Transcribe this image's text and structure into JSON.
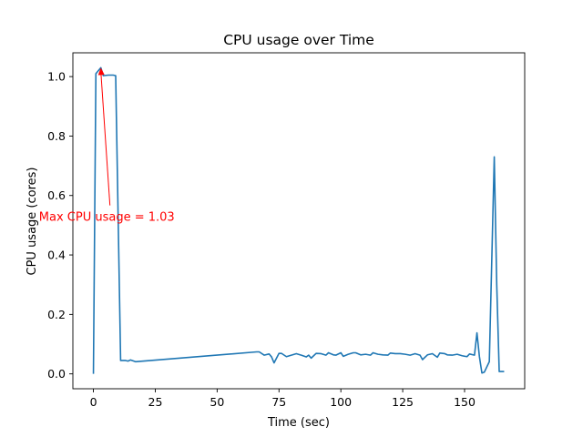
{
  "chart_data": {
    "type": "line",
    "title": "CPU usage over Time",
    "xlabel": "Time (sec)",
    "ylabel": "CPU usage (cores)",
    "xlim": [
      -8.3,
      174.3
    ],
    "ylim": [
      -0.05,
      1.08
    ],
    "xticks": [
      0,
      25,
      50,
      75,
      100,
      125,
      150
    ],
    "yticks": [
      0.0,
      0.2,
      0.4,
      0.6,
      0.8,
      1.0
    ],
    "xtick_labels": [
      "0",
      "25",
      "50",
      "75",
      "100",
      "125",
      "150"
    ],
    "ytick_labels": [
      "0.0",
      "0.2",
      "0.4",
      "0.6",
      "0.8",
      "1.0"
    ],
    "grid": false,
    "line_color": "#1f77b4",
    "annotation": {
      "text": "Max CPU usage = 1.03",
      "color": "#ff0000",
      "point": [
        3,
        1.03
      ],
      "text_anchor_data": [
        -22,
        0.53
      ]
    },
    "series": [
      {
        "x": [
          0,
          1,
          3,
          4,
          6,
          8,
          9,
          11,
          13,
          14,
          15,
          17,
          66,
          67,
          69,
          71,
          72,
          73,
          75,
          76,
          78,
          80,
          82,
          84,
          86,
          87,
          88,
          90,
          92,
          94,
          95,
          97,
          98,
          100,
          101,
          103,
          105,
          106,
          108,
          110,
          112,
          113,
          115,
          117,
          119,
          120,
          122,
          124,
          126,
          128,
          130,
          132,
          133,
          135,
          137,
          139,
          140,
          142,
          143,
          145,
          147,
          149,
          151,
          152,
          154,
          155,
          156,
          157,
          158,
          160,
          162,
          163,
          164,
          165,
          166
        ],
        "y": [
          0.0,
          1.01,
          1.03,
          1.003,
          1.005,
          1.005,
          1.003,
          0.045,
          0.045,
          0.043,
          0.047,
          0.041,
          0.074,
          0.074,
          0.063,
          0.067,
          0.057,
          0.037,
          0.069,
          0.069,
          0.058,
          0.063,
          0.068,
          0.063,
          0.057,
          0.063,
          0.053,
          0.069,
          0.068,
          0.063,
          0.071,
          0.064,
          0.063,
          0.071,
          0.059,
          0.066,
          0.071,
          0.071,
          0.064,
          0.066,
          0.063,
          0.071,
          0.066,
          0.064,
          0.063,
          0.07,
          0.068,
          0.068,
          0.066,
          0.063,
          0.068,
          0.063,
          0.048,
          0.064,
          0.068,
          0.056,
          0.07,
          0.068,
          0.064,
          0.063,
          0.066,
          0.061,
          0.058,
          0.067,
          0.063,
          0.138,
          0.058,
          0.003,
          0.006,
          0.041,
          0.73,
          0.3,
          0.008,
          0.008,
          0.008
        ]
      }
    ]
  }
}
